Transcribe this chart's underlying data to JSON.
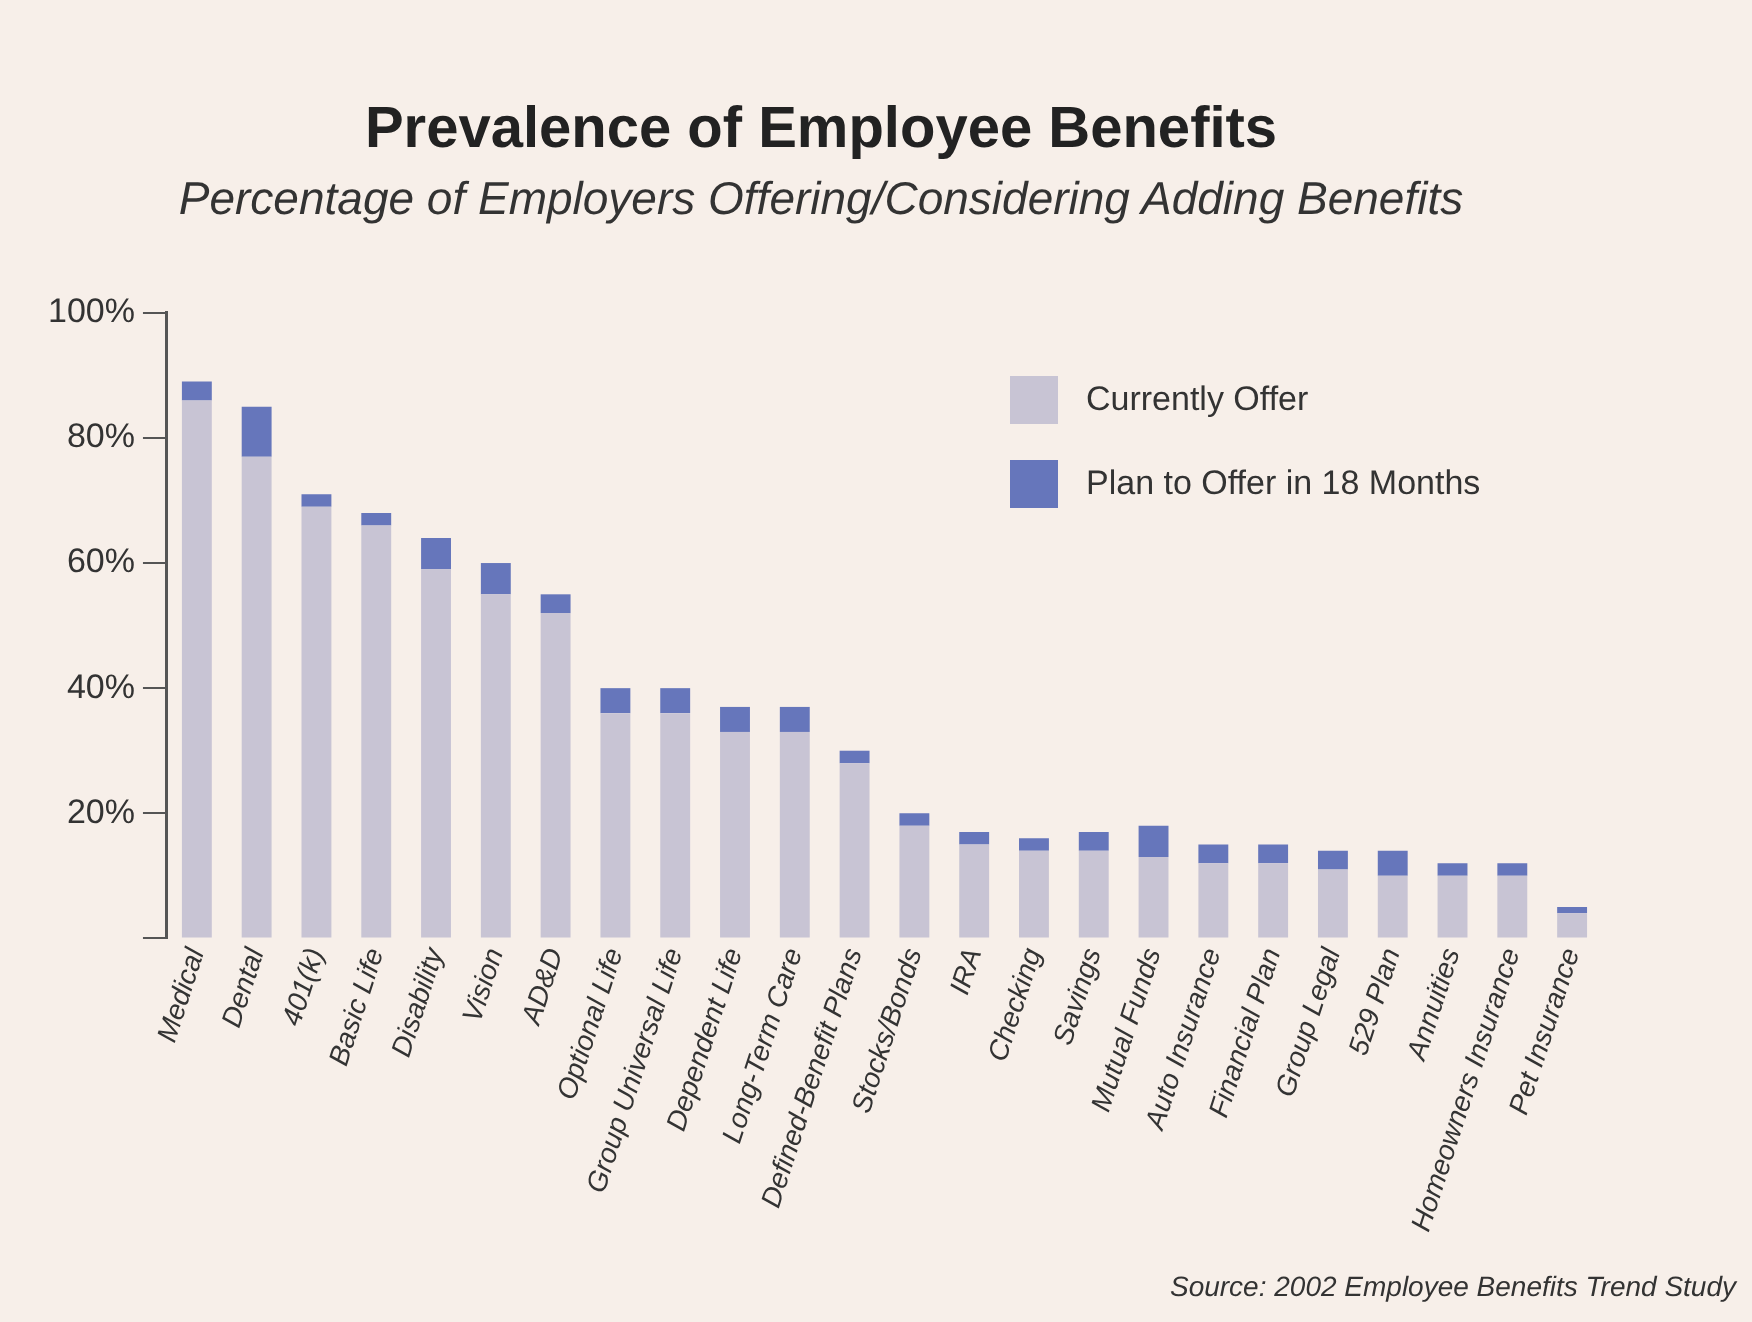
{
  "chart_data": {
    "type": "bar",
    "title": "Prevalence of Employee Benefits",
    "subtitle": "Percentage of Employers Offering/Considering Adding Benefits",
    "categories": [
      "Medical",
      "Dental",
      "401(k)",
      "Basic Life",
      "Disability",
      "Vision",
      "AD&D",
      "Optional Life",
      "Group Universal Life",
      "Dependent Life",
      "Long-Term Care",
      "Defined-Benefit Plans",
      "Stocks/Bonds",
      "IRA",
      "Checking",
      "Savings",
      "Mutual Funds",
      "Auto Insurance",
      "Financial Plan",
      "Group Legal",
      "529 Plan",
      "Annuities",
      "Homeowners Insurance",
      "Pet Insurance"
    ],
    "stacked": true,
    "series": [
      {
        "name": "Currently Offer",
        "color": "#c8c4d4",
        "values": [
          86,
          77,
          69,
          66,
          59,
          55,
          52,
          36,
          36,
          33,
          33,
          28,
          18,
          15,
          14,
          14,
          13,
          12,
          12,
          11,
          10,
          10,
          10,
          4
        ]
      },
      {
        "name": "Plan to Offer in 18 Months",
        "color": "#6676bb",
        "values": [
          3,
          8,
          2,
          2,
          5,
          5,
          3,
          4,
          4,
          4,
          4,
          2,
          2,
          2,
          2,
          3,
          5,
          3,
          3,
          3,
          4,
          2,
          2,
          1
        ]
      }
    ],
    "ylim": [
      0,
      100
    ],
    "yticks": [
      {
        "value": 0,
        "label": null
      },
      {
        "value": 20,
        "label": "20%"
      },
      {
        "value": 40,
        "label": "40%"
      },
      {
        "value": 60,
        "label": "60%"
      },
      {
        "value": 80,
        "label": "80%"
      },
      {
        "value": 100,
        "label": "100%"
      }
    ],
    "grid": false,
    "legend": "top right",
    "annotations": [
      "Source: 2002 Employee Benefits Trend Study"
    ]
  }
}
